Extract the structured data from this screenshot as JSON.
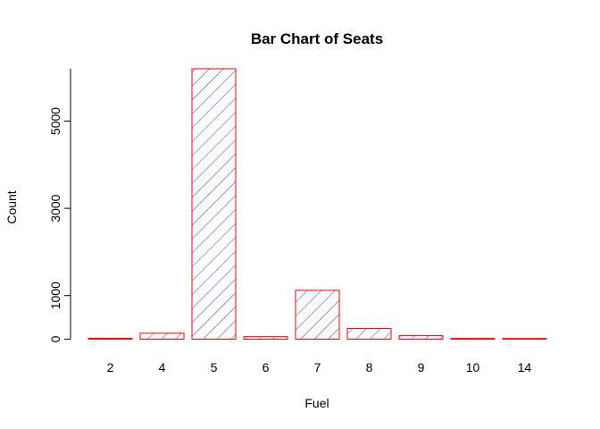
{
  "chart_data": {
    "type": "bar",
    "title": "Bar Chart of Seats",
    "xlabel": "Fuel",
    "ylabel": "Count",
    "categories": [
      "2",
      "4",
      "5",
      "6",
      "7",
      "8",
      "9",
      "10",
      "14"
    ],
    "values": [
      20,
      136,
      6200,
      58,
      1120,
      245,
      80,
      18,
      2
    ],
    "ylim": [
      0,
      6200
    ],
    "yticks": [
      0,
      1000,
      3000,
      5000
    ],
    "grid": false,
    "legend": "none",
    "bar_style": "hatched",
    "colors": {
      "border": "#ff0000",
      "hatch": "#0000ff",
      "axis": "#000000"
    }
  }
}
